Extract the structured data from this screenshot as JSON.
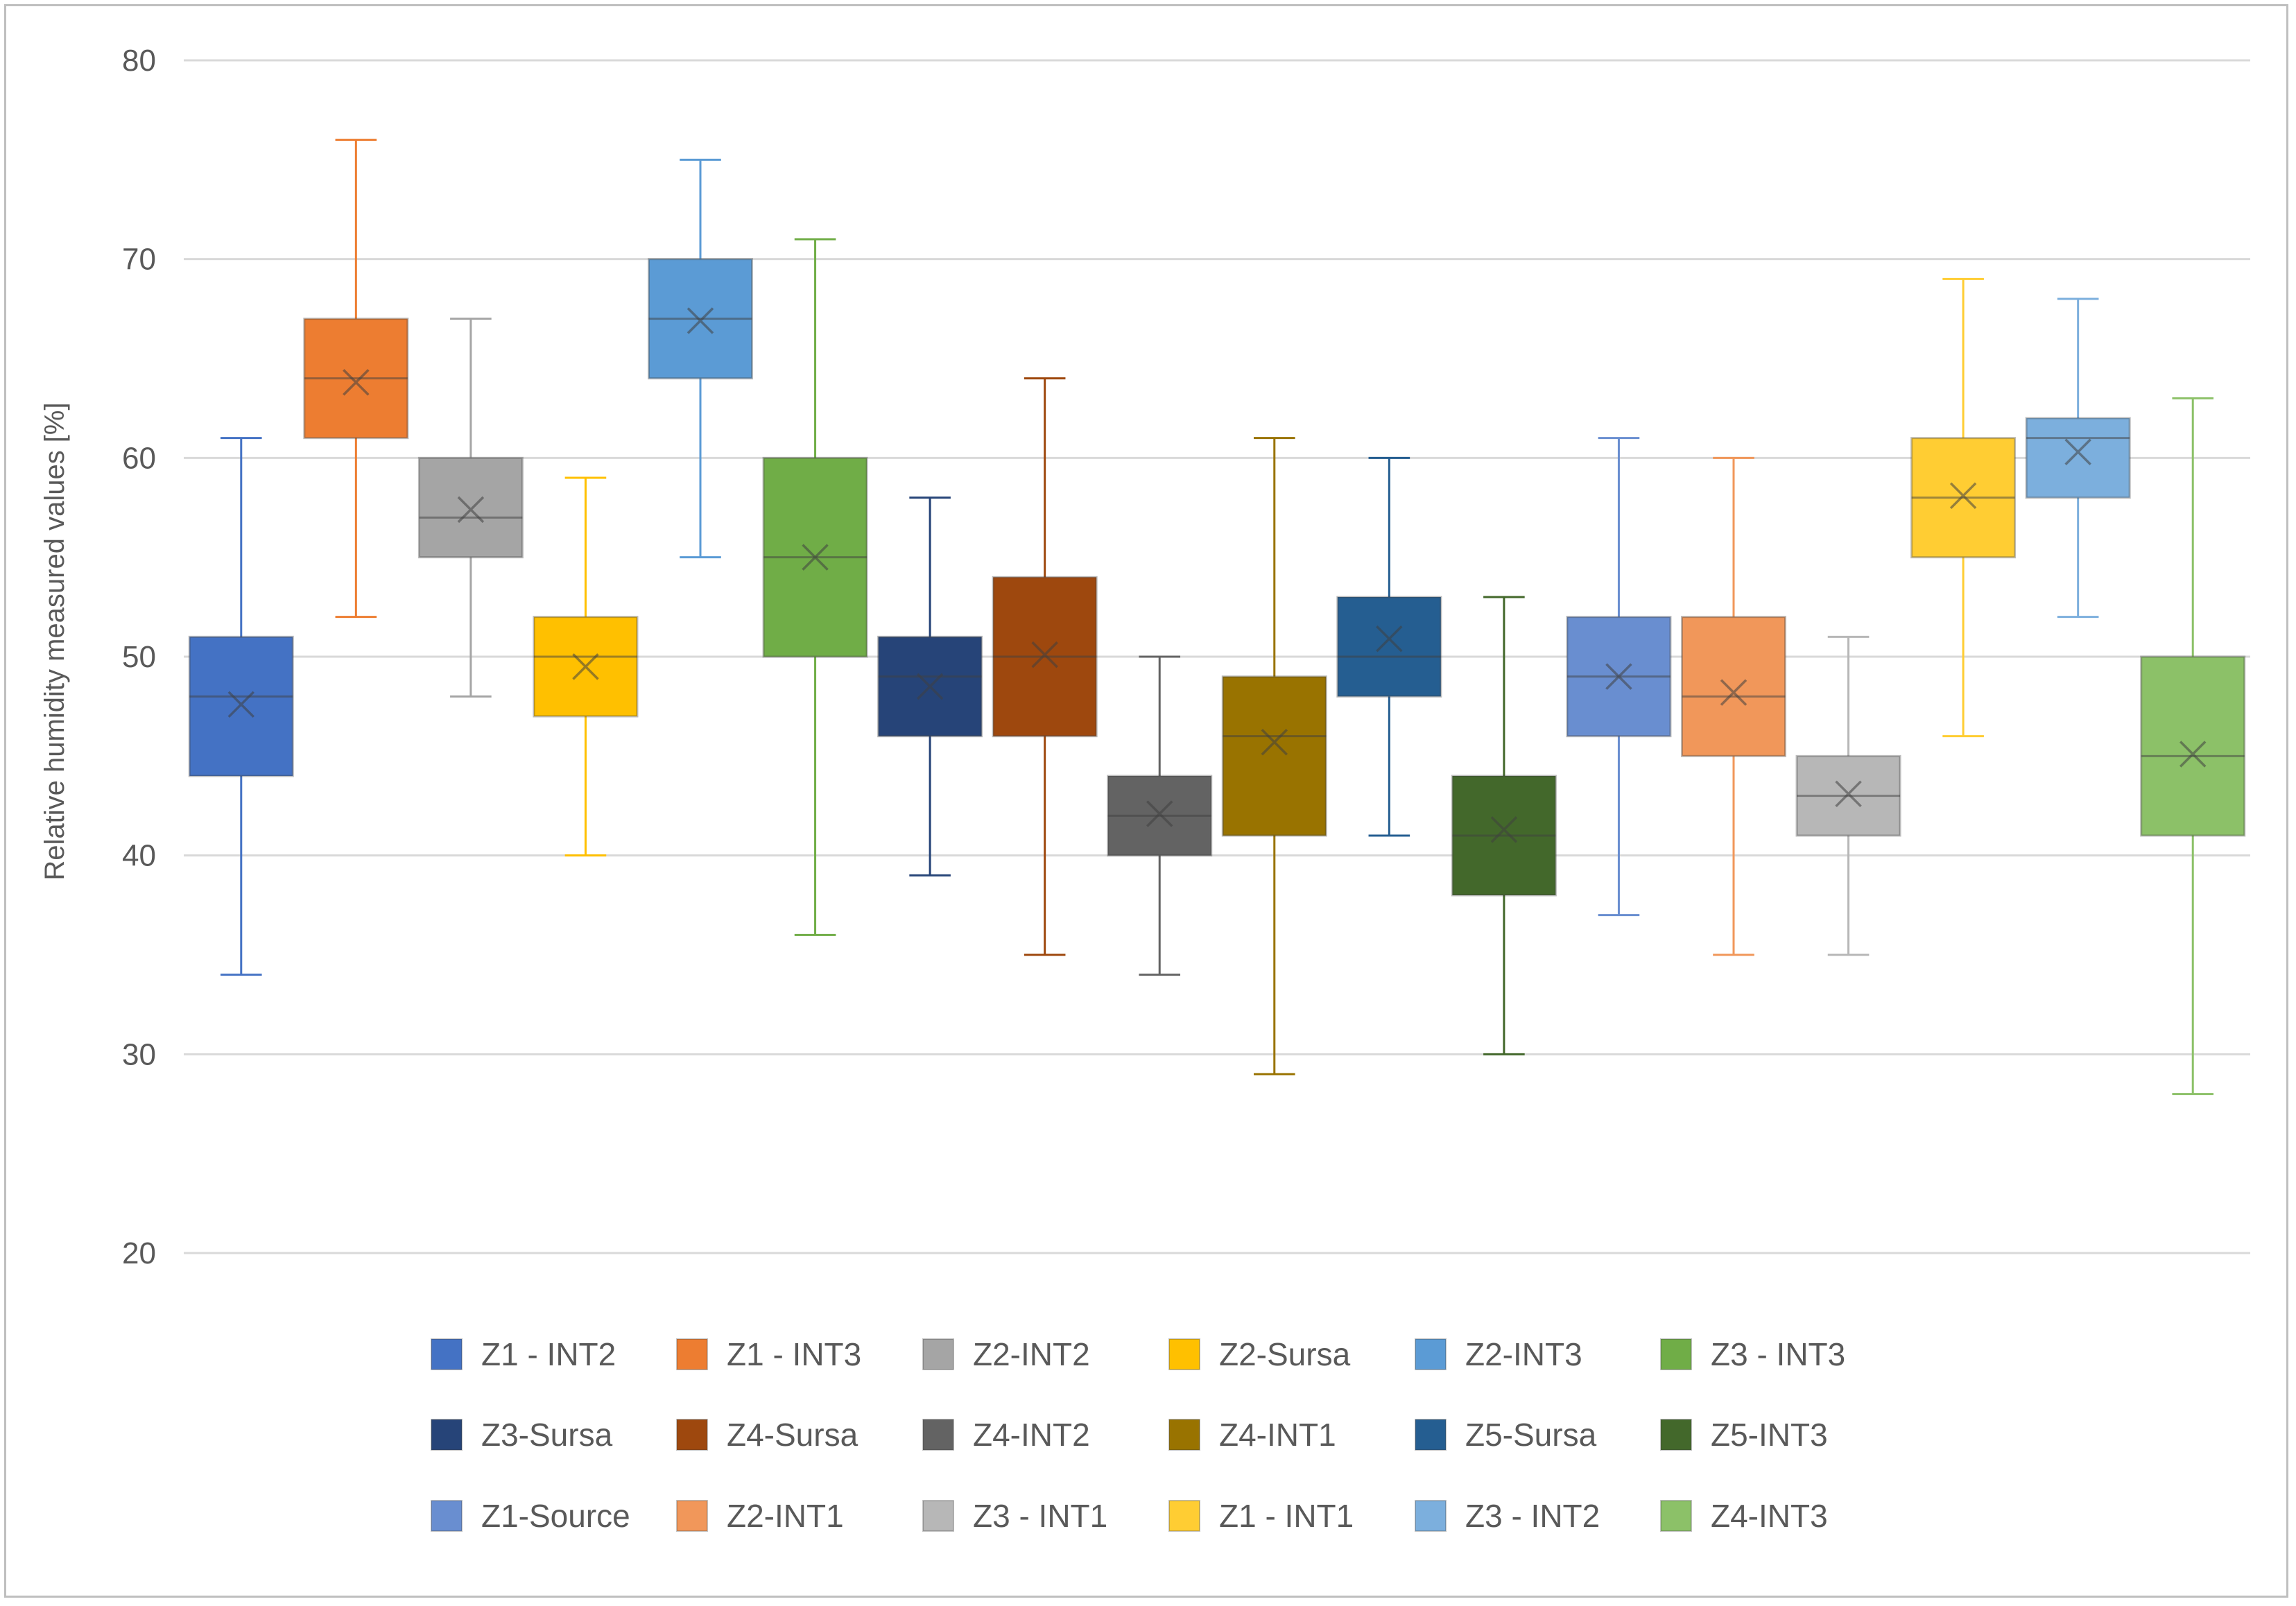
{
  "chart_data": {
    "type": "boxplot",
    "title": "",
    "xlabel": "",
    "ylabel": "Relative humidity measured values [%]",
    "ylim": [
      20,
      80
    ],
    "yticks": [
      20,
      30,
      40,
      50,
      60,
      70,
      80
    ],
    "grid": true,
    "legend_position": "bottom",
    "series": [
      {
        "name": "Z1 - INT2",
        "color": "#4472C4",
        "min": 34,
        "q1": 44,
        "median": 48,
        "q3": 51,
        "max": 61,
        "mean": 47.6
      },
      {
        "name": "Z1 - INT3",
        "color": "#ED7D31",
        "min": 52,
        "q1": 61,
        "median": 64,
        "q3": 67,
        "max": 76,
        "mean": 63.8
      },
      {
        "name": "Z2-INT2",
        "color": "#A5A5A5",
        "min": 48,
        "q1": 55,
        "median": 57,
        "q3": 60,
        "max": 67,
        "mean": 57.4
      },
      {
        "name": "Z2-Sursa",
        "color": "#FFC000",
        "min": 40,
        "q1": 47,
        "median": 50,
        "q3": 52,
        "max": 59,
        "mean": 49.5
      },
      {
        "name": "Z2-INT3",
        "color": "#5B9BD5",
        "min": 55,
        "q1": 64,
        "median": 67,
        "q3": 70,
        "max": 75,
        "mean": 66.9
      },
      {
        "name": "Z3 - INT3",
        "color": "#70AD47",
        "min": 36,
        "q1": 50,
        "median": 55,
        "q3": 60,
        "max": 71,
        "mean": 55.0
      },
      {
        "name": "Z3-Sursa",
        "color": "#264478",
        "min": 39,
        "q1": 46,
        "median": 49,
        "q3": 51,
        "max": 58,
        "mean": 48.5
      },
      {
        "name": "Z4-Sursa",
        "color": "#9E480E",
        "min": 35,
        "q1": 46,
        "median": 50,
        "q3": 54,
        "max": 64,
        "mean": 50.1
      },
      {
        "name": "Z4-INT2",
        "color": "#636363",
        "min": 34,
        "q1": 40,
        "median": 42,
        "q3": 44,
        "max": 50,
        "mean": 42.1
      },
      {
        "name": "Z4-INT1",
        "color": "#997300",
        "min": 29,
        "q1": 41,
        "median": 46,
        "q3": 49,
        "max": 61,
        "mean": 45.7
      },
      {
        "name": "Z5-Sursa",
        "color": "#255E91",
        "min": 41,
        "q1": 48,
        "median": 50,
        "q3": 53,
        "max": 60,
        "mean": 50.9
      },
      {
        "name": "Z5-INT3",
        "color": "#43682B",
        "min": 30,
        "q1": 38,
        "median": 41,
        "q3": 44,
        "max": 53,
        "mean": 41.3
      },
      {
        "name": "Z1-Source",
        "color": "#698ED0",
        "min": 37,
        "q1": 46,
        "median": 49,
        "q3": 52,
        "max": 61,
        "mean": 49.0
      },
      {
        "name": "Z2-INT1",
        "color": "#F1975A",
        "min": 35,
        "q1": 45,
        "median": 48,
        "q3": 52,
        "max": 60,
        "mean": 48.2
      },
      {
        "name": "Z3 - INT1",
        "color": "#B7B7B7",
        "min": 35,
        "q1": 41,
        "median": 43,
        "q3": 45,
        "max": 51,
        "mean": 43.1
      },
      {
        "name": "Z1 - INT1",
        "color": "#FFCD33",
        "min": 46,
        "q1": 55,
        "median": 58,
        "q3": 61,
        "max": 69,
        "mean": 58.1
      },
      {
        "name": "Z3 - INT2",
        "color": "#7CAFDD",
        "min": 52,
        "q1": 58,
        "median": 61,
        "q3": 62,
        "max": 68,
        "mean": 60.3
      },
      {
        "name": "Z4-INT3",
        "color": "#8CC168",
        "min": 28,
        "q1": 41,
        "median": 45,
        "q3": 50,
        "max": 63,
        "mean": 45.1
      }
    ]
  }
}
